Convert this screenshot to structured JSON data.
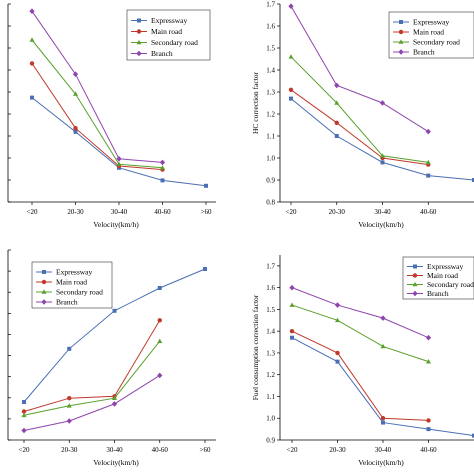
{
  "colors": {
    "Expressway": "#4a6fb5",
    "Main road": "#c0392b",
    "Secondary road": "#5aa02c",
    "Branch": "#8e44ad"
  },
  "chart_data": [
    {
      "type": "line",
      "id": "top-left",
      "xlabel": "Velocity(km/h)",
      "ylabel": "",
      "categories": [
        "<20",
        "20-30",
        "30-40",
        "40-60",
        ">60"
      ],
      "show_y_ticks": false,
      "ylim": [
        0.8,
        1.9
      ],
      "legend_position": "top-right",
      "series": [
        {
          "name": "Expressway",
          "values": [
            1.38,
            1.19,
            0.99,
            0.92,
            0.89
          ]
        },
        {
          "name": "Main road",
          "values": [
            1.57,
            1.21,
            1.0,
            0.98,
            null
          ]
        },
        {
          "name": "Secondary road",
          "values": [
            1.7,
            1.4,
            1.01,
            0.99,
            null
          ]
        },
        {
          "name": "Branch",
          "values": [
            1.86,
            1.51,
            1.04,
            1.02,
            null
          ]
        }
      ]
    },
    {
      "type": "line",
      "id": "top-right",
      "xlabel": "Velocity(km/h)",
      "ylabel": "HC correction factor",
      "categories": [
        "<20",
        "20-30",
        "30-40",
        "40-60",
        ">60"
      ],
      "show_y_ticks": true,
      "yticks": [
        "0.8",
        "0.9",
        "1.0",
        "1.1",
        "1.2",
        "1.3",
        "1.4",
        "1.5",
        "1.6",
        "1.7"
      ],
      "ylim": [
        0.8,
        1.7
      ],
      "legend_position": "top-right",
      "series": [
        {
          "name": "Expressway",
          "values": [
            1.27,
            1.1,
            0.98,
            0.92,
            0.9
          ]
        },
        {
          "name": "Main road",
          "values": [
            1.31,
            1.16,
            1.0,
            0.97,
            null
          ]
        },
        {
          "name": "Secondary road",
          "values": [
            1.46,
            1.25,
            1.01,
            0.98,
            null
          ]
        },
        {
          "name": "Branch",
          "values": [
            1.69,
            1.33,
            1.25,
            1.12,
            null
          ]
        }
      ]
    },
    {
      "type": "line",
      "id": "bottom-left",
      "xlabel": "Velocity(km/h)",
      "ylabel": "",
      "categories": [
        "<20",
        "20-30",
        "30-40",
        "40-60",
        ">60"
      ],
      "show_y_ticks": false,
      "ylim": [
        0.0,
        1.0
      ],
      "legend_position": "top-left",
      "series": [
        {
          "name": "Expressway",
          "values": [
            0.2,
            0.48,
            0.68,
            0.8,
            0.9
          ]
        },
        {
          "name": "Main road",
          "values": [
            0.15,
            0.22,
            0.23,
            0.63,
            null
          ]
        },
        {
          "name": "Secondary road",
          "values": [
            0.13,
            0.18,
            0.22,
            0.52,
            null
          ]
        },
        {
          "name": "Branch",
          "values": [
            0.05,
            0.1,
            0.19,
            0.34,
            null
          ]
        }
      ]
    },
    {
      "type": "line",
      "id": "bottom-right",
      "xlabel": "Velocity(km/h)",
      "ylabel": "Fuel consumption correction factor",
      "categories": [
        "<20",
        "20-30",
        "30-40",
        "40-60",
        ">60"
      ],
      "show_y_ticks": true,
      "yticks": [
        "0.9",
        "1.0",
        "1.1",
        "1.2",
        "1.3",
        "1.4",
        "1.5",
        "1.6",
        "1.7"
      ],
      "ylim": [
        0.9,
        1.75
      ],
      "legend_position": "top-right",
      "series": [
        {
          "name": "Expressway",
          "values": [
            1.37,
            1.26,
            0.98,
            0.95,
            0.92
          ]
        },
        {
          "name": "Main road",
          "values": [
            1.4,
            1.3,
            1.0,
            0.99,
            null
          ]
        },
        {
          "name": "Secondary road",
          "values": [
            1.52,
            1.45,
            1.33,
            1.26,
            null
          ]
        },
        {
          "name": "Branch",
          "values": [
            1.6,
            1.52,
            1.46,
            1.37,
            null
          ]
        }
      ]
    }
  ]
}
